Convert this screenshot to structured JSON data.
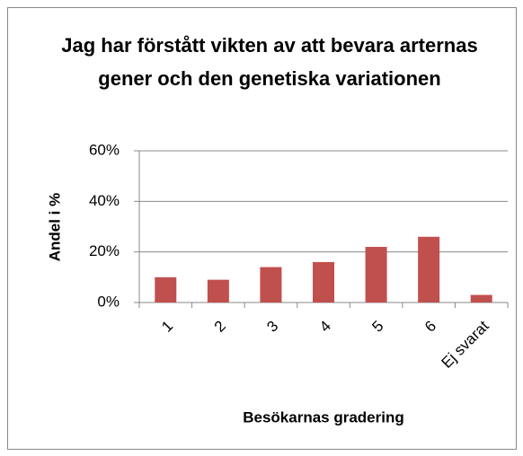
{
  "chart_data": {
    "type": "bar",
    "title": "Jag har förstått vikten av att bevara arternas gener och den genetiska variationen",
    "x_label": "Besökarnas gradering",
    "y_label": "Andel i %",
    "categories": [
      "1",
      "2",
      "3",
      "4",
      "5",
      "6",
      "Ej svarat"
    ],
    "values": [
      10,
      9,
      14,
      16,
      22,
      26,
      3
    ],
    "color": "#c0504d",
    "ylim": [
      0,
      60
    ],
    "yticks": [
      {
        "value": 0,
        "label": "0%"
      },
      {
        "value": 20,
        "label": "20%"
      },
      {
        "value": 40,
        "label": "40%"
      },
      {
        "value": 60,
        "label": "60%"
      }
    ],
    "grid": true
  }
}
